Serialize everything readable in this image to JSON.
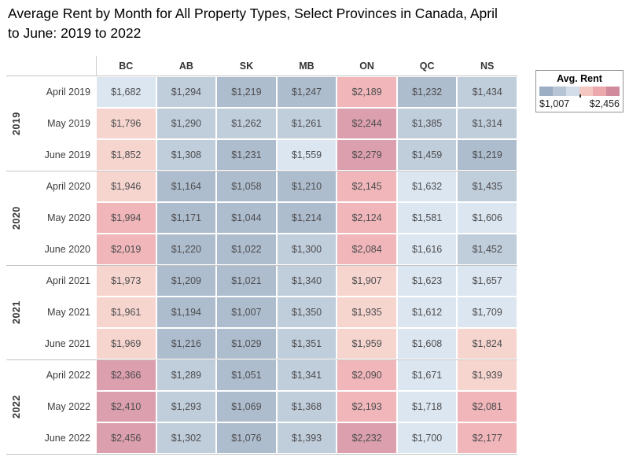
{
  "title": "Average Rent by Month for All Property Types, Select Provinces in Canada, April to June: 2019 to 2022",
  "legend": {
    "title": "Avg. Rent",
    "min_label": "$1,007",
    "max_label": "$2,456"
  },
  "palette": {
    "cell_colors": [
      "#aebdce",
      "#c0cddb",
      "#dce6f0",
      "#f6d5cf",
      "#f0b6ba",
      "#dc9fae"
    ],
    "cell_thresholds": [
      1249,
      1490,
      1732,
      1974,
      2215
    ],
    "legend_ramp": [
      "#9baec4",
      "#b6c4d5",
      "#d2dde9",
      "#f4c7c1",
      "#eba9ae",
      "#d18a9b"
    ]
  },
  "chart_data": {
    "type": "heatmap",
    "title": "Average Rent by Month for All Property Types, Select Provinces in Canada, April to June: 2019 to 2022",
    "columns": [
      "BC",
      "AB",
      "SK",
      "MB",
      "ON",
      "QC",
      "NS"
    ],
    "value_format": "$#,##0",
    "color_scale": {
      "legend_title": "Avg. Rent",
      "min": 1007,
      "max": 2456,
      "low_color": "gray-blue",
      "high_color": "rose-pink",
      "steps": 6
    },
    "row_groups": [
      {
        "year": "2019",
        "rows": [
          {
            "label": "April 2019",
            "values": [
              1682,
              1294,
              1219,
              1247,
              2189,
              1232,
              1434
            ]
          },
          {
            "label": "May 2019",
            "values": [
              1796,
              1290,
              1262,
              1261,
              2244,
              1385,
              1314
            ]
          },
          {
            "label": "June 2019",
            "values": [
              1852,
              1308,
              1231,
              1559,
              2279,
              1459,
              1219
            ]
          }
        ]
      },
      {
        "year": "2020",
        "rows": [
          {
            "label": "April 2020",
            "values": [
              1946,
              1164,
              1058,
              1210,
              2145,
              1632,
              1435
            ]
          },
          {
            "label": "May 2020",
            "values": [
              1994,
              1171,
              1044,
              1214,
              2124,
              1581,
              1606
            ]
          },
          {
            "label": "June 2020",
            "values": [
              2019,
              1220,
              1022,
              1300,
              2084,
              1616,
              1452
            ]
          }
        ]
      },
      {
        "year": "2021",
        "rows": [
          {
            "label": "April 2021",
            "values": [
              1973,
              1209,
              1021,
              1340,
              1907,
              1623,
              1657
            ]
          },
          {
            "label": "May 2021",
            "values": [
              1961,
              1194,
              1007,
              1350,
              1935,
              1612,
              1709
            ]
          },
          {
            "label": "June 2021",
            "values": [
              1969,
              1216,
              1029,
              1351,
              1959,
              1608,
              1824
            ]
          }
        ]
      },
      {
        "year": "2022",
        "rows": [
          {
            "label": "April 2022",
            "values": [
              2366,
              1289,
              1051,
              1341,
              2090,
              1671,
              1939
            ]
          },
          {
            "label": "May 2022",
            "values": [
              2410,
              1293,
              1069,
              1368,
              2193,
              1718,
              2081
            ]
          },
          {
            "label": "June 2022",
            "values": [
              2456,
              1302,
              1076,
              1393,
              2232,
              1700,
              2177
            ]
          }
        ]
      }
    ]
  }
}
